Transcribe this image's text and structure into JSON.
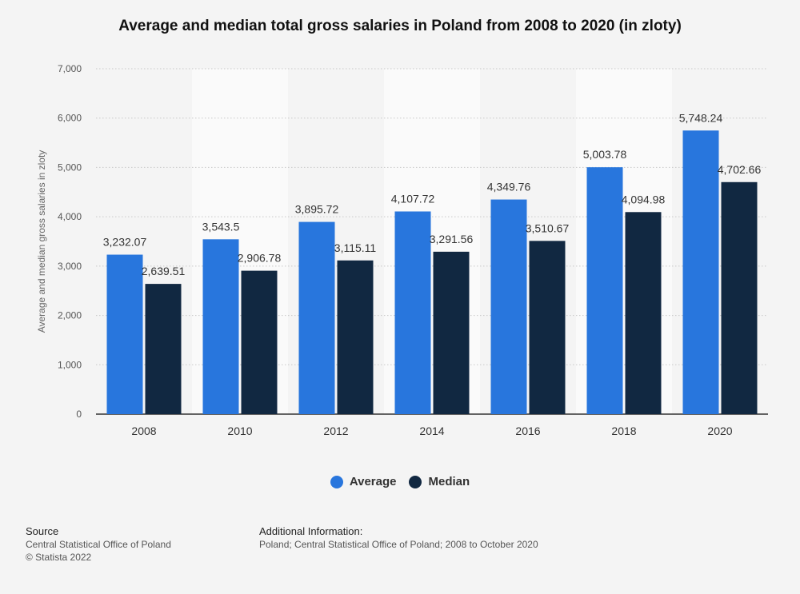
{
  "title": "Average and median total gross salaries in Poland from 2008 to 2020 (in zloty)",
  "chart_data": {
    "type": "bar",
    "categories": [
      "2008",
      "2010",
      "2012",
      "2014",
      "2016",
      "2018",
      "2020"
    ],
    "series": [
      {
        "name": "Average",
        "color": "#2876dd",
        "values": [
          3232.07,
          3543.5,
          3895.72,
          4107.72,
          4349.76,
          5003.78,
          5748.24
        ],
        "labels": [
          "3,232.07",
          "3,543.5",
          "3,895.72",
          "4,107.72",
          "4,349.76",
          "5,003.78",
          "5,748.24"
        ]
      },
      {
        "name": "Median",
        "color": "#112841",
        "values": [
          2639.51,
          2906.78,
          3115.11,
          3291.56,
          3510.67,
          4094.98,
          4702.66
        ],
        "labels": [
          "2,639.51",
          "2,906.78",
          "3,115.11",
          "3,291.56",
          "3,510.67",
          "4,094.98",
          "4,702.66"
        ]
      }
    ],
    "ylabel": "Average and median gross salaries in zloty",
    "xlabel": "",
    "ylim": [
      0,
      7000
    ],
    "yticks": [
      0,
      1000,
      2000,
      3000,
      4000,
      5000,
      6000,
      7000
    ],
    "ytick_labels": [
      "0",
      "1,000",
      "2,000",
      "3,000",
      "4,000",
      "5,000",
      "6,000",
      "7,000"
    ],
    "grid": true,
    "legend_position": "bottom"
  },
  "footer": {
    "source_heading": "Source",
    "source_text": "Central Statistical Office of Poland",
    "copyright": "© Statista 2022",
    "info_heading": "Additional Information:",
    "info_text": "Poland; Central Statistical Office of Poland; 2008 to October 2020"
  }
}
